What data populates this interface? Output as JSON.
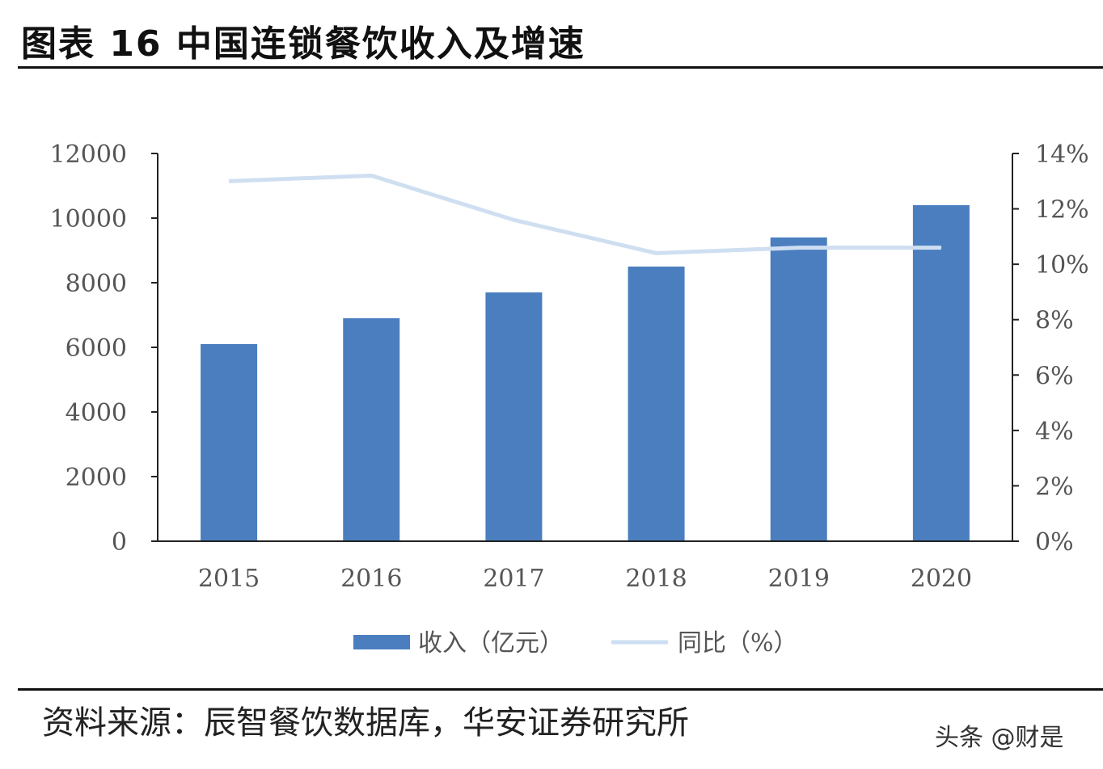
{
  "header": {
    "title": "图表 16 中国连锁餐饮收入及增速"
  },
  "footer": {
    "source": "资料来源：辰智餐饮数据库，华安证券研究所",
    "watermark": "头条 @财是"
  },
  "colors": {
    "bar": "#4a7ebf",
    "line": "#cfdff1",
    "axis": "#222222"
  },
  "chart_data": {
    "type": "bar",
    "title": "中国连锁餐饮收入及增速",
    "categories": [
      "2015",
      "2016",
      "2017",
      "2018",
      "2019",
      "2020"
    ],
    "series": [
      {
        "name": "收入（亿元）",
        "type": "bar",
        "axis": "left",
        "values": [
          6100,
          6900,
          7700,
          8500,
          9400,
          10400
        ]
      },
      {
        "name": "同比（%）",
        "type": "line",
        "axis": "right",
        "values": [
          13.0,
          13.2,
          11.6,
          10.4,
          10.6,
          10.6
        ]
      }
    ],
    "y_left": {
      "ylim": [
        0,
        12000
      ],
      "ticks": [
        "0",
        "2000",
        "4000",
        "6000",
        "8000",
        "10000",
        "12000"
      ]
    },
    "y_right": {
      "ylim": [
        0,
        14
      ],
      "ticks": [
        "0%",
        "2%",
        "4%",
        "6%",
        "8%",
        "10%",
        "12%",
        "14%"
      ]
    },
    "legend": {
      "position": "bottom-center",
      "labels": [
        "收入（亿元）",
        "同比（%）"
      ]
    },
    "grid": false
  }
}
